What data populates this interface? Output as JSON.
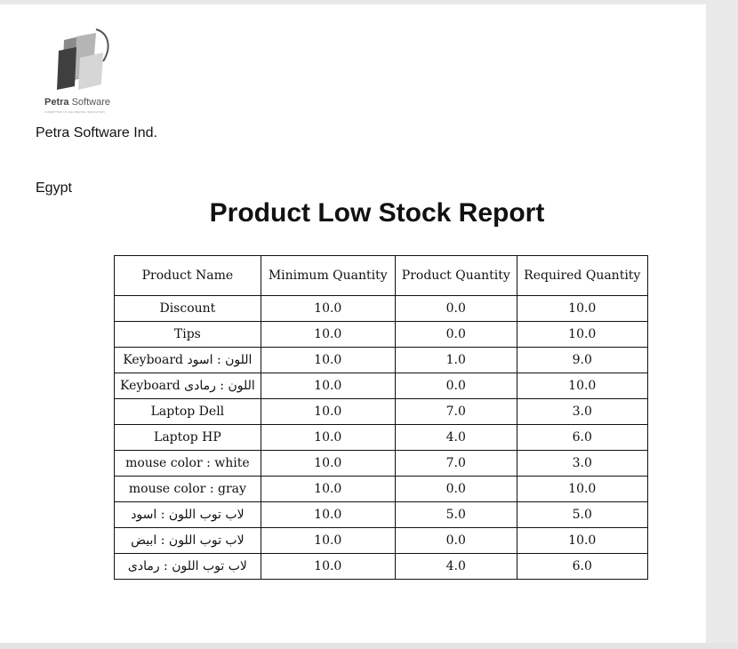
{
  "logo": {
    "brand_name": "Petra",
    "brand_suffix": "Software",
    "tagline": "COMMITTED TO DELIVERING INNOVATION"
  },
  "company": "Petra Software Ind.",
  "country": "Egypt",
  "title": "Product Low Stock Report",
  "table": {
    "headers": [
      "Product Name",
      "Minimum Quantity",
      "Product Quantity",
      "Required Quantity"
    ],
    "rows": [
      [
        "Discount",
        "10.0",
        "0.0",
        "10.0"
      ],
      [
        "Tips",
        "10.0",
        "0.0",
        "10.0"
      ],
      [
        "Keyboard اللون : اسود",
        "10.0",
        "1.0",
        "9.0"
      ],
      [
        "Keyboard اللون : رمادى",
        "10.0",
        "0.0",
        "10.0"
      ],
      [
        "Laptop Dell",
        "10.0",
        "7.0",
        "3.0"
      ],
      [
        "Laptop HP",
        "10.0",
        "4.0",
        "6.0"
      ],
      [
        "mouse color : white",
        "10.0",
        "7.0",
        "3.0"
      ],
      [
        "mouse color : gray",
        "10.0",
        "0.0",
        "10.0"
      ],
      [
        "لاب توب اللون : اسود",
        "10.0",
        "5.0",
        "5.0"
      ],
      [
        "لاب توب اللون : ابيض",
        "10.0",
        "0.0",
        "10.0"
      ],
      [
        "لاب توب اللون : رمادى",
        "10.0",
        "4.0",
        "6.0"
      ]
    ]
  }
}
